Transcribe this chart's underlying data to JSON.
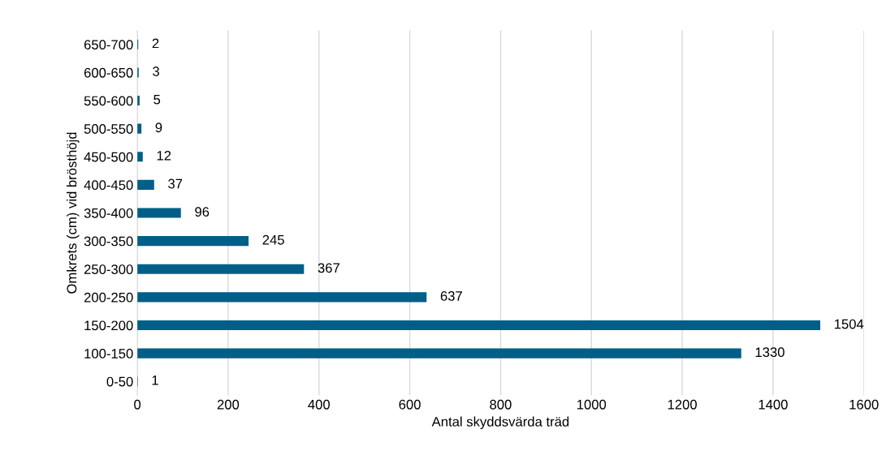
{
  "chart_data": {
    "type": "bar",
    "orientation": "horizontal",
    "xlabel": "Antal skyddsvärda träd",
    "ylabel": "Omkrets (cm) vid brösthöjd",
    "categories": [
      "650-700",
      "600-650",
      "550-600",
      "500-550",
      "450-500",
      "400-450",
      "350-400",
      "300-350",
      "250-300",
      "200-250",
      "150-200",
      "100-150",
      "0-50"
    ],
    "values": [
      2,
      3,
      5,
      9,
      12,
      37,
      96,
      245,
      367,
      637,
      1504,
      1330,
      1
    ],
    "color": "#005f87",
    "xlim": [
      0,
      1600
    ],
    "xticks": [
      0,
      200,
      400,
      600,
      800,
      1000,
      1200,
      1400,
      1600
    ],
    "grid": "x",
    "data_labels": true
  }
}
